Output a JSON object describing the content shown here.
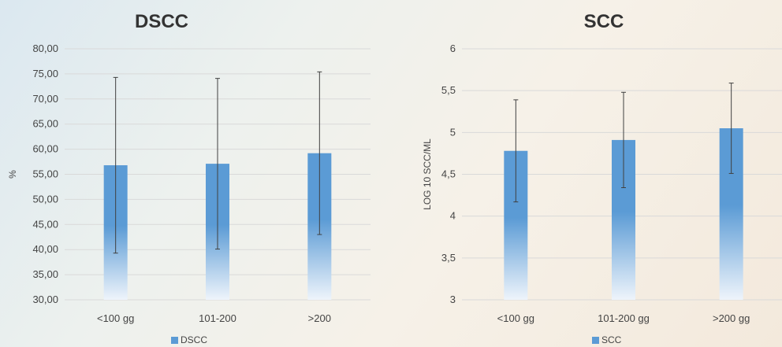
{
  "colors": {
    "bar": "#5b9bd5",
    "grid": "#d9d9d9",
    "error": "#404040"
  },
  "chart_data": [
    {
      "type": "bar",
      "title": "DSCC",
      "ylabel": "%",
      "xlabel": "",
      "categories": [
        "<100 gg",
        "101-200",
        ">200"
      ],
      "series": [
        {
          "name": "DSCC",
          "values": [
            56.8,
            57.1,
            59.2
          ],
          "error": [
            17.5,
            17.0,
            16.2
          ]
        }
      ],
      "ylim": [
        30,
        80
      ],
      "yticks": [
        "30,00",
        "35,00",
        "40,00",
        "45,00",
        "50,00",
        "55,00",
        "60,00",
        "65,00",
        "70,00",
        "75,00",
        "80,00"
      ],
      "grid": true,
      "legend": "bottom"
    },
    {
      "type": "bar",
      "title": "SCC",
      "ylabel": "LOG 10 SCC/ML",
      "xlabel": "",
      "categories": [
        "<100 gg",
        "101-200 gg",
        ">200 gg"
      ],
      "series": [
        {
          "name": "SCC",
          "values": [
            4.78,
            4.91,
            5.05
          ],
          "error": [
            0.61,
            0.57,
            0.54
          ]
        }
      ],
      "ylim": [
        3,
        6
      ],
      "yticks": [
        "3",
        "3,5",
        "4",
        "4,5",
        "5",
        "5,5",
        "6"
      ],
      "grid": true,
      "legend": "bottom"
    }
  ]
}
